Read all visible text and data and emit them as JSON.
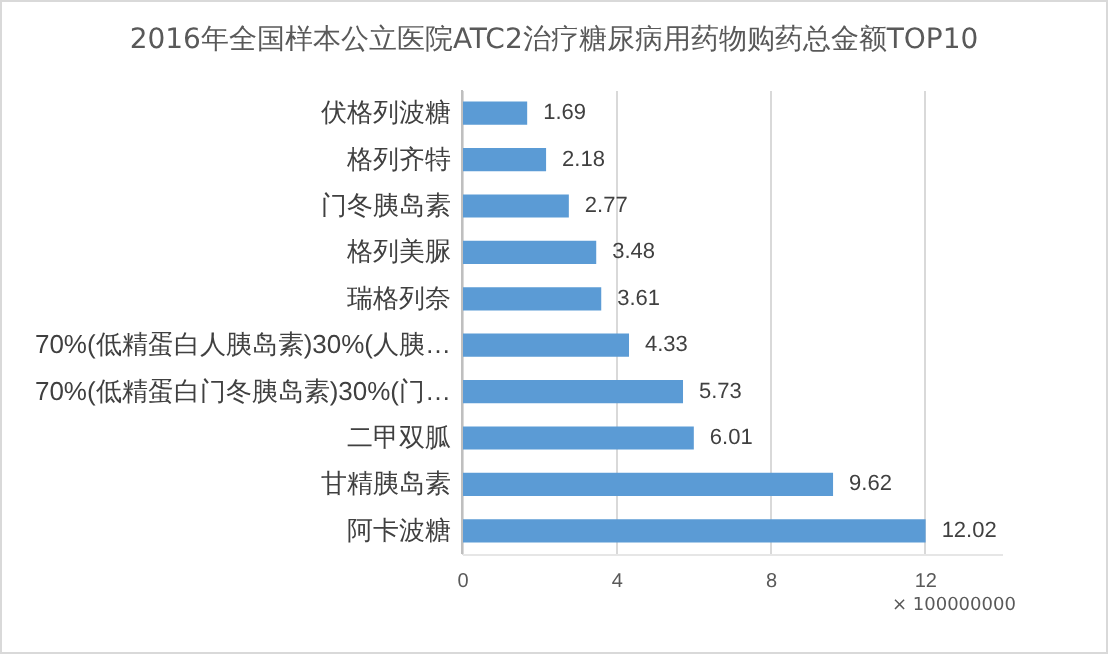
{
  "chart_data": {
    "type": "bar",
    "orientation": "horizontal",
    "title": "2016年全国样本公立医院ATC2治疗糖尿病用药物购药总金额TOP10",
    "categories": [
      "伏格列波糖",
      "格列齐特",
      "门冬胰岛素",
      "格列美脲",
      "瑞格列奈",
      "70%(低精蛋白人胰岛素)30%(人胰…",
      "70%(低精蛋白门冬胰岛素)30%(门…",
      "二甲双胍",
      "甘精胰岛素",
      "阿卡波糖"
    ],
    "values": [
      1.69,
      2.18,
      2.77,
      3.48,
      3.61,
      4.33,
      5.73,
      6.01,
      9.62,
      12.02
    ],
    "color": "#5b9bd5",
    "xlim": [
      0,
      14
    ],
    "xticks": [
      0,
      4,
      8,
      12
    ],
    "grid": "x",
    "data_labels": true,
    "annotations": [
      "× 100000000"
    ]
  }
}
